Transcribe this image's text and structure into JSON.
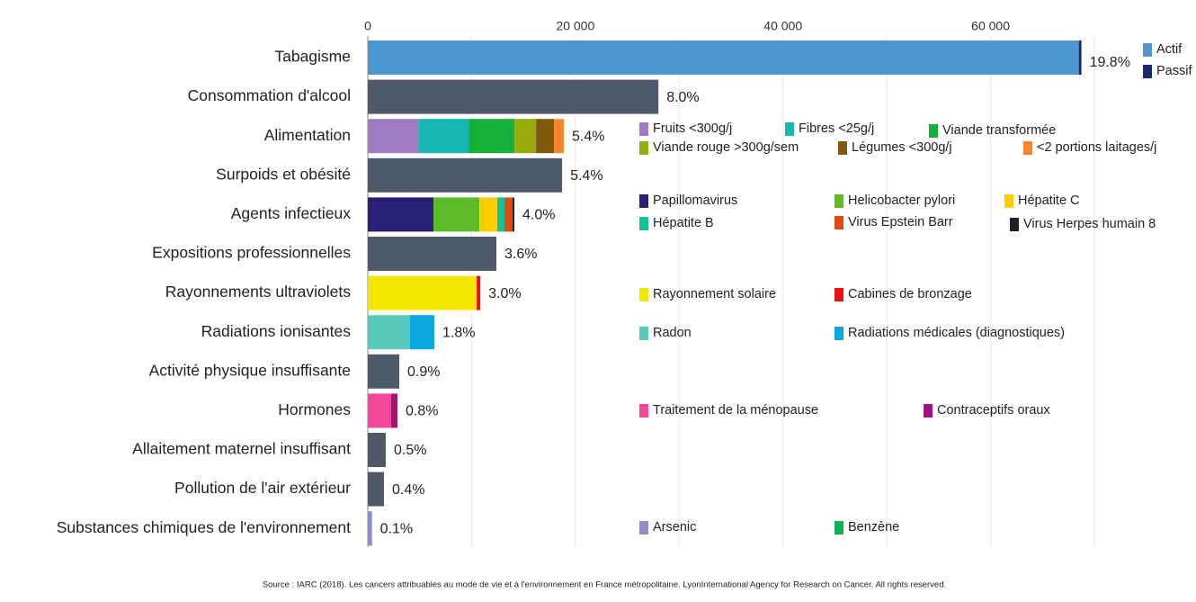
{
  "chart_data": {
    "type": "stacked_bar_horizontal",
    "source": "Source : IARC (2018). Les cancers attribuables au mode de vie et à l'environnement en France métropolitaine. LyonInternational Agency for Research on Cancer. All rights reserved.",
    "xlim": [
      0,
      70000
    ],
    "xticks": [
      0,
      {
        "value": 20000,
        "label": "20 000"
      },
      {
        "value": 40000,
        "label": "40 000"
      },
      {
        "value": 60000,
        "label": "60 000"
      }
    ],
    "minor_xticks": [
      10000,
      30000,
      50000,
      70000
    ],
    "grid": true,
    "color": "#4e5969",
    "bars": [
      {
        "category": "Tabagisme",
        "label": "19.8%",
        "segments": [
          {
            "name": "Actif",
            "color": "#4d96d1",
            "value": 68500
          },
          {
            "name": "Passif",
            "color": "#1b2a6b",
            "value": 250
          }
        ]
      },
      {
        "category": "Consommation d'alcool",
        "label": "8.0%",
        "value": 28000
      },
      {
        "category": "Alimentation",
        "label": "5.4%",
        "segments": [
          {
            "name": "Fruits <300g/j",
            "color": "#a07cc0",
            "value": 4940
          },
          {
            "name": "Fibres <25g/j",
            "color": "#17b8b0",
            "value": 4770
          },
          {
            "name": "Viande transformée",
            "color": "#13b13a",
            "value": 4420
          },
          {
            "name": "Viande rouge >300g/sem",
            "color": "#95ac0c",
            "value": 2080
          },
          {
            "name": "Légumes <300g/j",
            "color": "#7f5a0a",
            "value": 1730
          },
          {
            "name": "<2 portions laitages/j",
            "color": "#f5862e",
            "value": 950
          }
        ]
      },
      {
        "category": "Surpoids et obésité",
        "label": "5.4%",
        "value": 18720
      },
      {
        "category": "Agents infectieux",
        "label": "4.0%",
        "segments": [
          {
            "name": "Papillomavirus",
            "color": "#2a1f77",
            "value": 6330
          },
          {
            "name": "Helicobacter pylori",
            "color": "#5dbb2a",
            "value": 4420
          },
          {
            "name": "Hépatite C",
            "color": "#ffcc00",
            "value": 1730
          },
          {
            "name": "Hépatite B",
            "color": "#13c39a",
            "value": 690
          },
          {
            "name": "Virus Epstein Barr",
            "color": "#de4a12",
            "value": 780
          },
          {
            "name": "Virus Herpes humain 8",
            "color": "#222222",
            "value": 170
          }
        ]
      },
      {
        "category": "Expositions professionnelles",
        "label": "3.6%",
        "value": 12390
      },
      {
        "category": "Rayonnements ultraviolets",
        "label": "3.0%",
        "segments": [
          {
            "name": "Rayonnement solaire",
            "color": "#f1e800",
            "value": 10490
          },
          {
            "name": "Cabines de bronzage",
            "color": "#ee1111",
            "value": 350
          }
        ]
      },
      {
        "category": "Radiations ionisantes",
        "label": "1.8%",
        "segments": [
          {
            "name": "Radon",
            "color": "#57c9b9",
            "value": 4070
          },
          {
            "name": "Radiations médicales (diagnostiques)",
            "color": "#0aa7e0",
            "value": 2340
          }
        ]
      },
      {
        "category": "Activité physique insuffisante",
        "label": "0.9%",
        "value": 3030
      },
      {
        "category": "Hormones",
        "label": "0.8%",
        "segments": [
          {
            "name": "Traitement de la ménopause",
            "color": "#f2479b",
            "value": 2250
          },
          {
            "name": "Contraceptifs oraux",
            "color": "#a3117a",
            "value": 610
          }
        ]
      },
      {
        "category": "Allaitement maternel insuffisant",
        "label": "0.5%",
        "value": 1730
      },
      {
        "category": "Pollution de l'air extérieur",
        "label": "0.4%",
        "value": 1560
      },
      {
        "category": "Substances chimiques de l'environnement",
        "label": "0.1%",
        "segments": [
          {
            "name": "Arsenic",
            "color": "#8c8fcc",
            "value": 350
          },
          {
            "name": "Benzène",
            "color": "#13b156",
            "value": 50
          }
        ]
      }
    ]
  }
}
